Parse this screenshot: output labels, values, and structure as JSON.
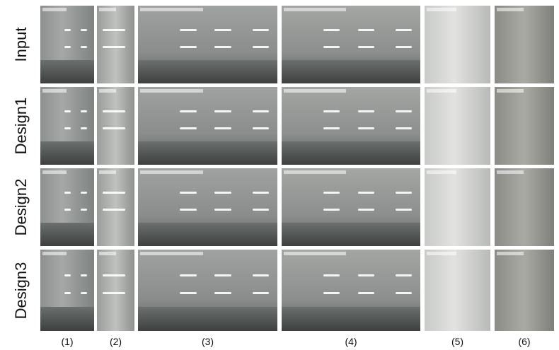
{
  "row_labels": [
    "Input",
    "Design1",
    "Design2",
    "Design3"
  ],
  "column_labels": [
    "(1)",
    "(2)",
    "(3)",
    "(4)",
    "(5)",
    "(6)"
  ]
}
